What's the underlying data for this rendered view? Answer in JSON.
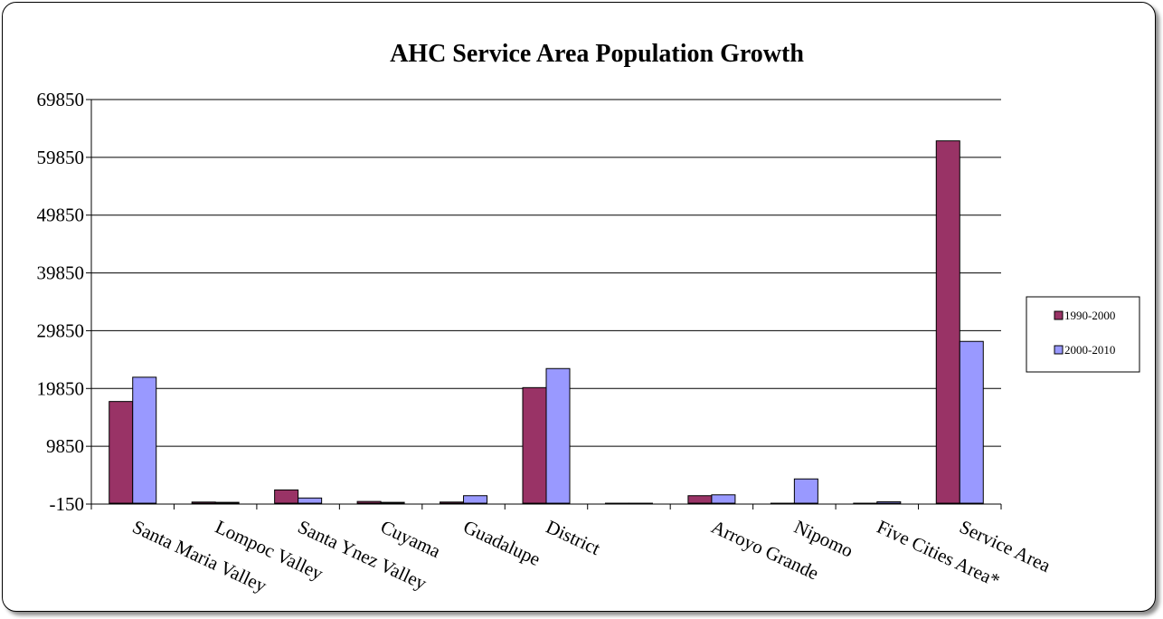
{
  "chart_data": {
    "type": "bar",
    "title": "AHC Service Area Population Growth",
    "xlabel": "",
    "ylabel": "",
    "ylim": [
      -150,
      69850
    ],
    "yticks": [
      -150,
      9850,
      19850,
      29850,
      39850,
      49850,
      59850,
      69850
    ],
    "categories": [
      "Santa Maria Valley",
      "Lompoc Valley",
      "Santa Ynez Valley",
      "Cuyama",
      "Guadalupe",
      "District",
      "",
      "Arroyo Grande",
      "Nipomo",
      "Five Cities Area*",
      "Service Area"
    ],
    "series": [
      {
        "name": "1990-2000",
        "color": "#993366",
        "values": [
          17600,
          200,
          2300,
          300,
          200,
          20000,
          0,
          1300,
          0,
          0,
          62700
        ]
      },
      {
        "name": "2000-2010",
        "color": "#9999ff",
        "values": [
          21800,
          150,
          900,
          150,
          1300,
          23300,
          0,
          1450,
          4200,
          250,
          28000
        ]
      }
    ],
    "grid": true,
    "legend": "right"
  }
}
